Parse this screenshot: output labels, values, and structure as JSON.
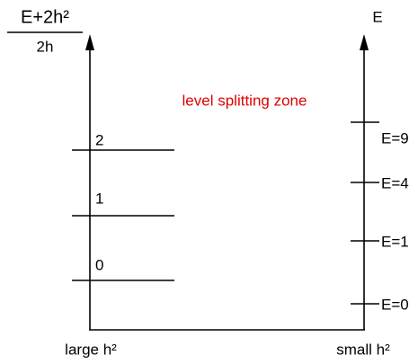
{
  "left_axis": {
    "numerator": "E+2h²",
    "denominator": "2h"
  },
  "right_axis": {
    "label": "E"
  },
  "annotation": "level splitting zone",
  "left_levels": [
    "2",
    "1",
    "0"
  ],
  "right_levels": [
    "E=9",
    "E=4",
    "E=1",
    "E=0"
  ],
  "bottom_labels": {
    "left": "large h²",
    "right": "small h²"
  }
}
